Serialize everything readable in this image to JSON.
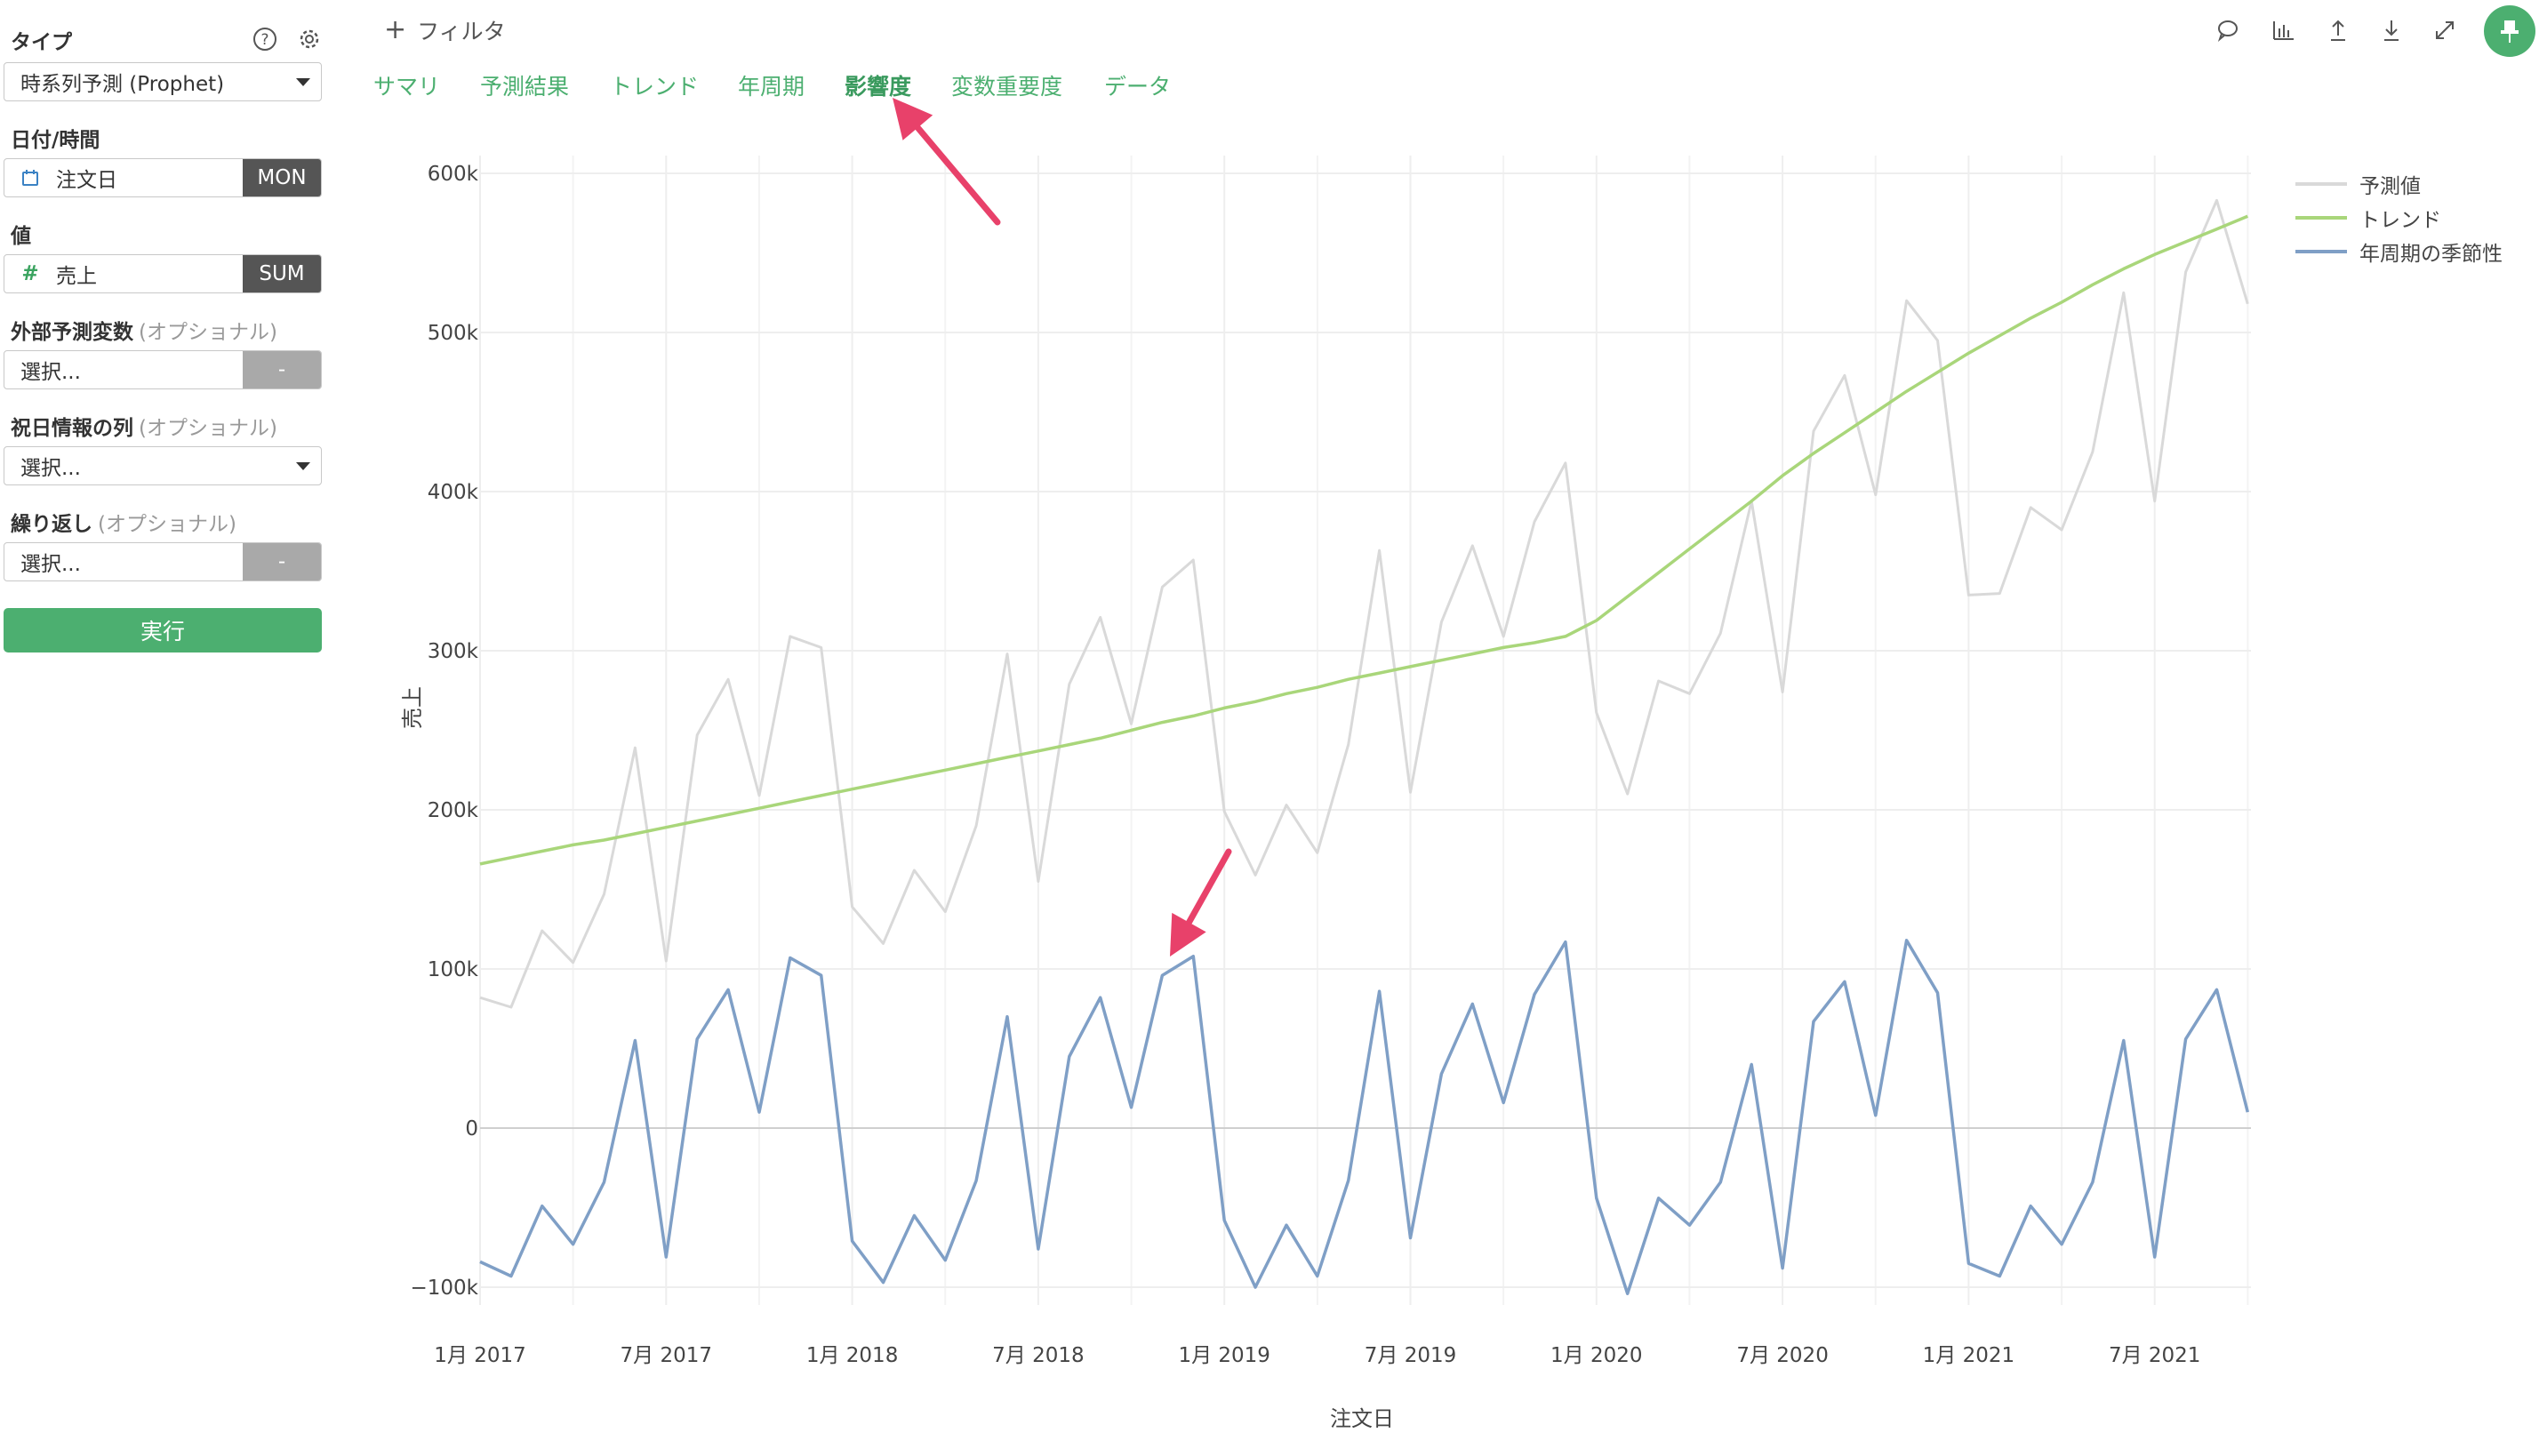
{
  "sidebar": {
    "type_label": "タイプ",
    "type_value": "時系列予測 (Prophet)",
    "date_label": "日付/時間",
    "date_field": "注文日",
    "date_agg": "MON",
    "value_label": "値",
    "value_field": "売上",
    "value_agg": "SUM",
    "ext_label": "外部予測変数",
    "ext_opt": "(オプショナル)",
    "ext_placeholder": "選択...",
    "ext_agg": "-",
    "holiday_label": "祝日情報の列",
    "holiday_opt": "(オプショナル)",
    "holiday_placeholder": "選択...",
    "repeat_label": "繰り返し",
    "repeat_opt": "(オプショナル)",
    "repeat_placeholder": "選択...",
    "repeat_agg": "-",
    "run_label": "実行",
    "icons": [
      "help-icon",
      "gear-icon",
      "calendar-icon",
      "hash-icon",
      "caret-down-icon"
    ]
  },
  "topbar": {
    "filter_label": "フィルタ",
    "tabs": [
      "サマリ",
      "予測結果",
      "トレンド",
      "年周期",
      "影響度",
      "変数重要度",
      "データ"
    ],
    "active_tab": "影響度",
    "toolbar_icons": [
      "comment-icon",
      "chart-icon",
      "upload-icon",
      "download-icon",
      "expand-icon",
      "pin-icon"
    ]
  },
  "colors": {
    "accent": "#4caf70",
    "prediction": "#d9d9d9",
    "trend": "#a9d67a",
    "seasonality": "#7f9fc6",
    "annotation_arrow": "#e8416a"
  },
  "chart_data": {
    "type": "line",
    "xlabel": "注文日",
    "ylabel": "売上",
    "x_ticks": [
      "1月 2017",
      "7月 2017",
      "1月 2018",
      "7月 2018",
      "1月 2019",
      "7月 2019",
      "1月 2020",
      "7月 2020",
      "1月 2021",
      "7月 2021"
    ],
    "y_ticks": [
      "600k",
      "500k",
      "400k",
      "300k",
      "200k",
      "100k",
      "0",
      "−100k"
    ],
    "ylim": [
      -100000,
      600000
    ],
    "x": [
      "2017-01",
      "2017-02",
      "2017-03",
      "2017-04",
      "2017-05",
      "2017-06",
      "2017-07",
      "2017-08",
      "2017-09",
      "2017-10",
      "2017-11",
      "2017-12",
      "2018-01",
      "2018-02",
      "2018-03",
      "2018-04",
      "2018-05",
      "2018-06",
      "2018-07",
      "2018-08",
      "2018-09",
      "2018-10",
      "2018-11",
      "2018-12",
      "2019-01",
      "2019-02",
      "2019-03",
      "2019-04",
      "2019-05",
      "2019-06",
      "2019-07",
      "2019-08",
      "2019-09",
      "2019-10",
      "2019-11",
      "2019-12",
      "2020-01",
      "2020-02",
      "2020-03",
      "2020-04",
      "2020-05",
      "2020-06",
      "2020-07",
      "2020-08",
      "2020-09",
      "2020-10",
      "2020-11",
      "2020-12",
      "2021-01",
      "2021-02",
      "2021-03",
      "2021-04",
      "2021-05",
      "2021-06",
      "2021-07",
      "2021-08",
      "2021-09",
      "2021-10"
    ],
    "series": [
      {
        "name": "予測値",
        "values": [
          82000,
          76000,
          124000,
          104000,
          147000,
          239000,
          105000,
          247000,
          282000,
          209000,
          309000,
          302000,
          139000,
          116000,
          162000,
          136000,
          190000,
          298000,
          155000,
          279000,
          321000,
          254000,
          340000,
          357000,
          199000,
          159000,
          203000,
          173000,
          241000,
          363000,
          211000,
          318000,
          366000,
          309000,
          381000,
          418000,
          261000,
          210000,
          281000,
          273000,
          311000,
          394000,
          274000,
          438000,
          473000,
          398000,
          520000,
          495000,
          335000,
          336000,
          390000,
          376000,
          425000,
          525000,
          394000,
          538000,
          583000,
          518000
        ]
      },
      {
        "name": "トレンド",
        "values": [
          166000,
          170000,
          174000,
          178000,
          181000,
          185000,
          189000,
          193000,
          197000,
          201000,
          205000,
          209000,
          213000,
          217000,
          221000,
          225000,
          229000,
          233000,
          237000,
          241000,
          245000,
          250000,
          255000,
          259000,
          264000,
          268000,
          273000,
          277000,
          282000,
          286000,
          290000,
          294000,
          298000,
          302000,
          305000,
          309000,
          319000,
          334000,
          349000,
          364000,
          379000,
          394000,
          410000,
          424000,
          437000,
          450000,
          463000,
          475000,
          487000,
          498000,
          509000,
          519000,
          530000,
          540000,
          549000,
          557000,
          565000,
          573000
        ]
      },
      {
        "name": "年周期の季節性",
        "values": [
          -84000,
          -93000,
          -49000,
          -73000,
          -34000,
          55000,
          -81000,
          56000,
          87000,
          10000,
          107000,
          96000,
          -71000,
          -97000,
          -55000,
          -83000,
          -33000,
          70000,
          -76000,
          45000,
          82000,
          13000,
          96000,
          108000,
          -58000,
          -100000,
          -61000,
          -93000,
          -33000,
          86000,
          -69000,
          34000,
          78000,
          16000,
          84000,
          117000,
          -44000,
          -104000,
          -44000,
          -61000,
          -34000,
          40000,
          -88000,
          67000,
          92000,
          8000,
          118000,
          85000,
          -85000,
          -93000,
          -49000,
          -73000,
          -34000,
          55000,
          -81000,
          56000,
          87000,
          10000
        ]
      }
    ],
    "grid": true,
    "legend": "top-right"
  }
}
